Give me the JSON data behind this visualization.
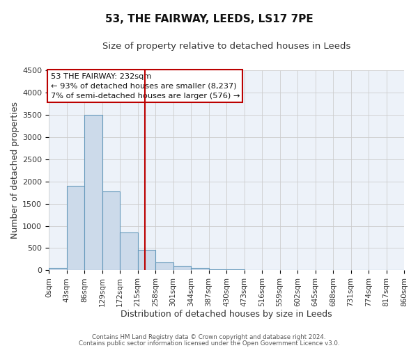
{
  "title": "53, THE FAIRWAY, LEEDS, LS17 7PE",
  "subtitle": "Size of property relative to detached houses in Leeds",
  "xlabel": "Distribution of detached houses by size in Leeds",
  "ylabel": "Number of detached properties",
  "bin_edges": [
    0,
    43,
    86,
    129,
    172,
    215,
    258,
    301,
    344,
    387,
    430,
    473,
    516,
    559,
    602,
    645,
    688,
    731,
    774,
    817,
    860
  ],
  "bin_heights": [
    50,
    1900,
    3500,
    1780,
    850,
    460,
    185,
    100,
    60,
    30,
    20,
    10,
    0,
    0,
    0,
    0,
    0,
    0,
    0,
    0
  ],
  "bar_facecolor": "#ccdaea",
  "bar_edgecolor": "#6699bb",
  "vline_x": 232,
  "vline_color": "#bb0000",
  "annotation_line1": "53 THE FAIRWAY: 232sqm",
  "annotation_line2": "← 93% of detached houses are smaller (8,237)",
  "annotation_line3": "7% of semi-detached houses are larger (576) →",
  "box_edgecolor": "#bb0000",
  "ylim": [
    0,
    4500
  ],
  "xlim": [
    0,
    860
  ],
  "yticks": [
    0,
    500,
    1000,
    1500,
    2000,
    2500,
    3000,
    3500,
    4000,
    4500
  ],
  "grid_color": "#cccccc",
  "background_color": "#edf2f9",
  "footer_line1": "Contains HM Land Registry data © Crown copyright and database right 2024.",
  "footer_line2": "Contains public sector information licensed under the Open Government Licence v3.0.",
  "title_fontsize": 11,
  "subtitle_fontsize": 9.5,
  "tick_label_fontsize": 7.5,
  "axis_label_fontsize": 9
}
